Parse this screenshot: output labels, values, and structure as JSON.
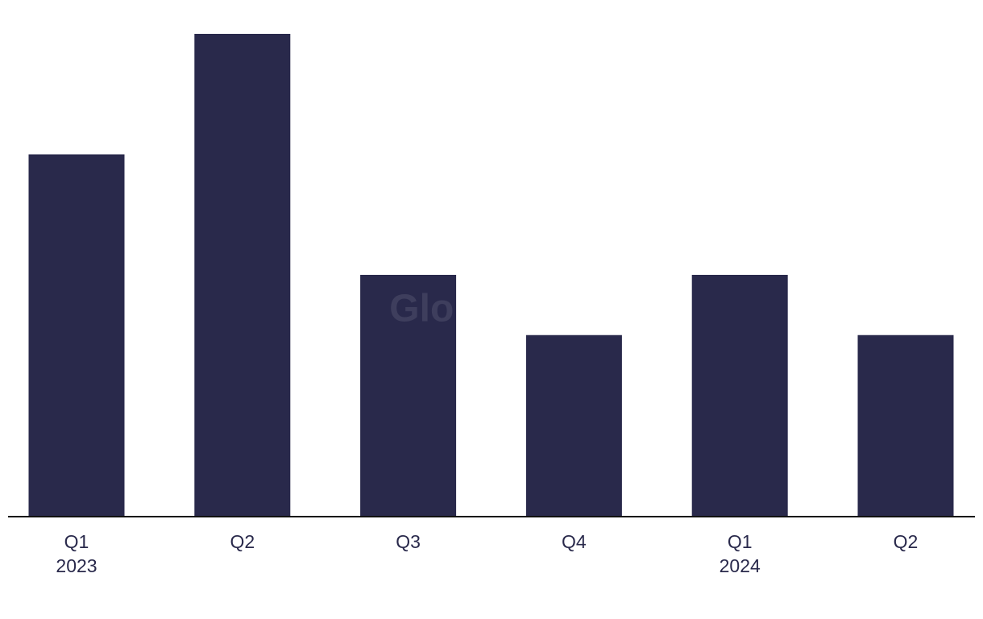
{
  "chart_data": {
    "type": "bar",
    "watermark": "GlobalData",
    "categories": [
      [
        "Q1",
        "2023"
      ],
      [
        "Q2"
      ],
      [
        "Q3"
      ],
      [
        "Q4"
      ],
      [
        "Q1",
        "2024"
      ],
      [
        "Q2"
      ]
    ],
    "values": [
      6,
      8,
      4,
      3,
      4,
      3
    ],
    "color": "#29294b",
    "ylim": [
      0,
      8
    ]
  }
}
